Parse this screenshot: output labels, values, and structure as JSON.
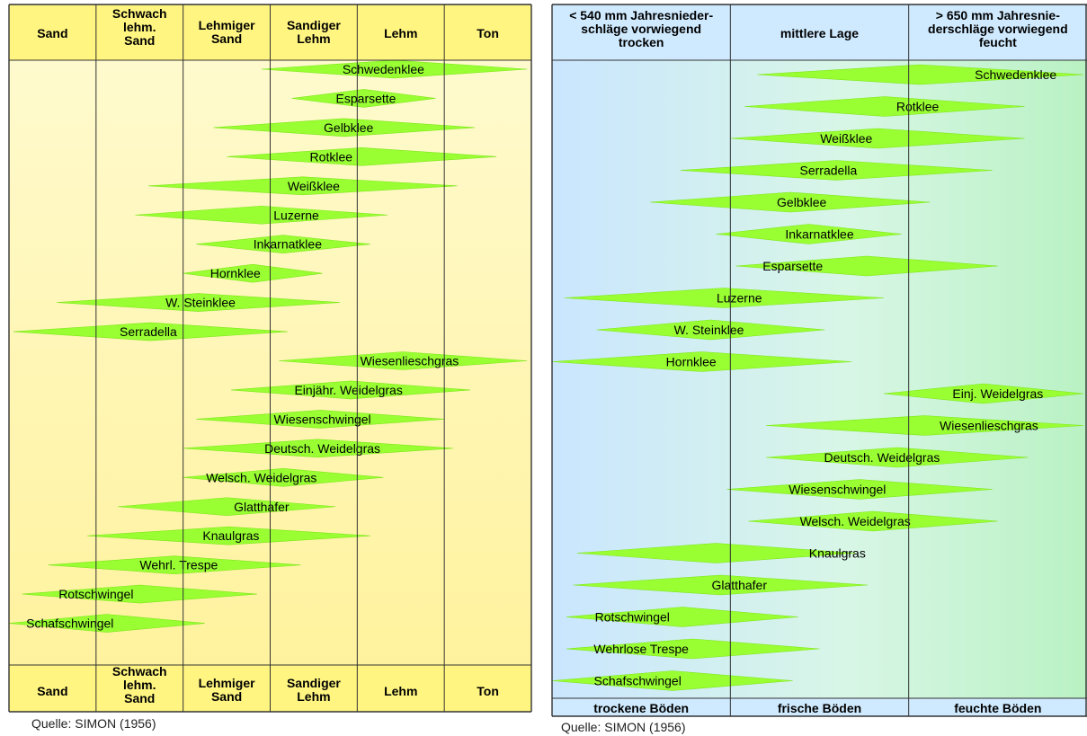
{
  "chart_data": [
    {
      "type": "range",
      "source": "Quelle: SIMON (1956)",
      "columns": [
        "Sand",
        "Schwach lehm. Sand",
        "Lehmiger Sand",
        "Sandiger Lehm",
        "Lehm",
        "Ton"
      ],
      "columns_lines": [
        [
          "Sand"
        ],
        [
          "Schwach",
          "lehm.",
          "Sand"
        ],
        [
          "Lehmiger",
          "Sand"
        ],
        [
          "Sandiger",
          "Lehm"
        ],
        [
          "Lehm"
        ],
        [
          "Ton"
        ]
      ],
      "x_axis": "soil type scale, 0 = left edge of 'Sand', 6 = right edge of 'Ton'",
      "series": [
        {
          "name": "Schwedenklee",
          "start": 2.9,
          "end": 5.95,
          "peak": 4.3
        },
        {
          "name": "Esparsette",
          "start": 3.25,
          "end": 4.9,
          "peak": 4.1
        },
        {
          "name": "Gelbklee",
          "start": 2.35,
          "end": 5.35,
          "peak": 3.9
        },
        {
          "name": "Rotklee",
          "start": 2.5,
          "end": 5.6,
          "peak": 3.7
        },
        {
          "name": "Weißklee",
          "start": 1.6,
          "end": 5.15,
          "peak": 3.5
        },
        {
          "name": "Luzerne",
          "start": 1.45,
          "end": 4.35,
          "peak": 3.3
        },
        {
          "name": "Inkarnatklee",
          "start": 2.15,
          "end": 4.15,
          "peak": 3.2
        },
        {
          "name": "Hornklee",
          "start": 2.0,
          "end": 3.6,
          "peak": 2.6
        },
        {
          "name": "W. Steinklee",
          "start": 0.55,
          "end": 3.8,
          "peak": 2.2
        },
        {
          "name": "Serradella",
          "start": 0.05,
          "end": 3.2,
          "peak": 1.6
        },
        {
          "name": "Wiesenlieschgras",
          "start": 3.1,
          "end": 5.95,
          "peak": 4.6
        },
        {
          "name": "Einjähr. Weidelgras",
          "start": 2.55,
          "end": 5.3,
          "peak": 3.9
        },
        {
          "name": "Wiesenschwingel",
          "start": 2.15,
          "end": 5.0,
          "peak": 3.6
        },
        {
          "name": "Deutsch. Weidelgras",
          "start": 2.0,
          "end": 5.1,
          "peak": 3.6
        },
        {
          "name": "Welsch. Weidelgras",
          "start": 2.0,
          "end": 4.3,
          "peak": 2.9
        },
        {
          "name": "Glatthafer",
          "start": 1.25,
          "end": 3.75,
          "peak": 2.9
        },
        {
          "name": "Knaulgras",
          "start": 0.9,
          "end": 4.15,
          "peak": 2.55
        },
        {
          "name": "Wehrl. Trespe",
          "start": 0.45,
          "end": 3.35,
          "peak": 1.95
        },
        {
          "name": "Rotschwingel",
          "start": 0.15,
          "end": 2.85,
          "peak": 1.0
        },
        {
          "name": "Schafschwingel",
          "start": 0.0,
          "end": 2.25,
          "peak": 0.7
        }
      ]
    },
    {
      "type": "range",
      "source": "Quelle: SIMON (1956)",
      "columns_top": [
        "< 540 mm Jahresnieder- schläge vorwiegend trocken",
        "mittlere Lage",
        "> 650 mm Jahresnie- derschläge vorwiegend feucht"
      ],
      "columns_top_lines": [
        [
          "< 540 mm Jahresnieder-",
          "schläge vorwiegend",
          "trocken"
        ],
        [
          "mittlere Lage"
        ],
        [
          "> 650 mm Jahresnie-",
          "derschläge vorwiegend",
          "feucht"
        ]
      ],
      "columns_bottom": [
        "trockene Böden",
        "frische Böden",
        "feuchte Böden"
      ],
      "x_axis": "moisture scale, 0 = left edge, 3 = right edge",
      "series": [
        {
          "name": "Schwedenklee",
          "start": 1.15,
          "end": 2.98,
          "peak": 2.6
        },
        {
          "name": "Rotklee",
          "start": 1.08,
          "end": 2.65,
          "peak": 2.05
        },
        {
          "name": "Weißklee",
          "start": 1.0,
          "end": 2.65,
          "peak": 1.65
        },
        {
          "name": "Serradella",
          "start": 0.72,
          "end": 2.47,
          "peak": 1.55
        },
        {
          "name": "Gelbklee",
          "start": 0.55,
          "end": 2.12,
          "peak": 1.4
        },
        {
          "name": "Inkarnatklee",
          "start": 0.92,
          "end": 1.96,
          "peak": 1.5
        },
        {
          "name": "Esparsette",
          "start": 1.03,
          "end": 2.5,
          "peak": 1.35
        },
        {
          "name": "Luzerne",
          "start": 0.07,
          "end": 1.86,
          "peak": 1.05
        },
        {
          "name": "W. Steinklee",
          "start": 0.25,
          "end": 1.53,
          "peak": 0.88
        },
        {
          "name": "Hornklee",
          "start": 0.0,
          "end": 1.68,
          "peak": 0.78
        },
        {
          "name": "Einj. Weidelgras",
          "start": 1.86,
          "end": 2.98,
          "peak": 2.5
        },
        {
          "name": "Wiesenlieschgras",
          "start": 1.2,
          "end": 2.98,
          "peak": 2.45
        },
        {
          "name": "Deutsch. Weidelgras",
          "start": 1.2,
          "end": 2.67,
          "peak": 1.85
        },
        {
          "name": "Wiesenschwingel",
          "start": 0.98,
          "end": 2.47,
          "peak": 1.6
        },
        {
          "name": "Welsch. Weidelgras",
          "start": 1.1,
          "end": 2.5,
          "peak": 1.7
        },
        {
          "name": "Knaulgras",
          "start": 0.14,
          "end": 1.7,
          "peak": 1.6
        },
        {
          "name": "Glatthafer",
          "start": 0.12,
          "end": 1.77,
          "peak": 1.05
        },
        {
          "name": "Rotschwingel",
          "start": 0.08,
          "end": 1.38,
          "peak": 0.45
        },
        {
          "name": "Wehrlose Trespe",
          "start": 0.08,
          "end": 1.5,
          "peak": 0.5
        },
        {
          "name": "Schafschwingel",
          "start": 0.0,
          "end": 1.35,
          "peak": 0.48
        }
      ]
    }
  ],
  "colors": {
    "diamond": "#99ff33",
    "diamond_stroke": "#7ee61a",
    "left_bg_top": "#fff8b0",
    "left_bg_bottom": "#fff0a0",
    "left_header_bg": "#fff580",
    "right_bg_left": "#cceaff",
    "right_bg_right": "#bff5c9",
    "right_header_bg": "#cfeaff",
    "grid_line": "#333333"
  }
}
